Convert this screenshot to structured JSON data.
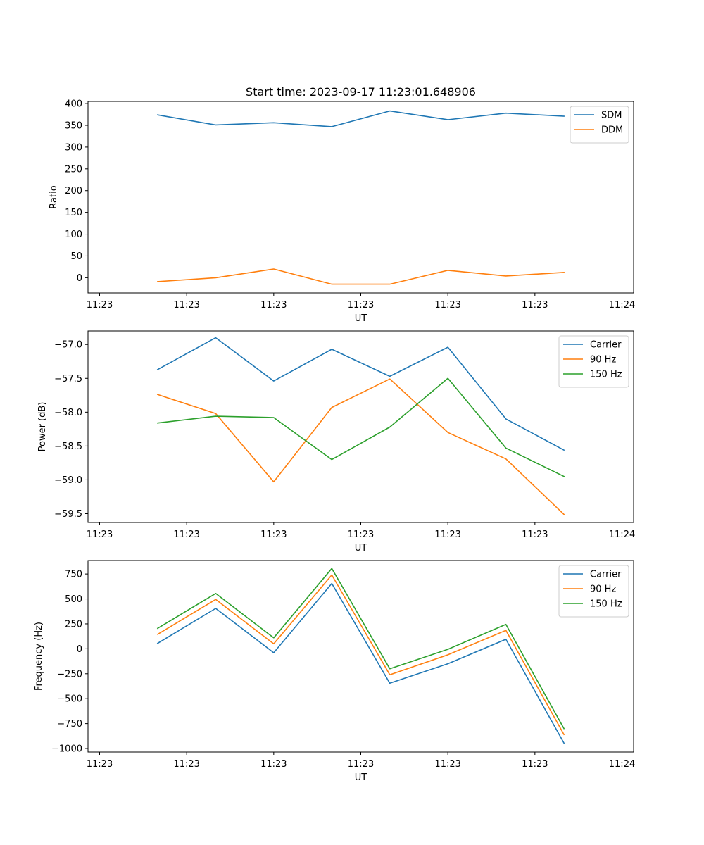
{
  "chart_data": [
    {
      "type": "line",
      "title": "Start time: 2023-09-17 11:23:01.648906",
      "xlabel": "UT",
      "ylabel": "Ratio",
      "x": [
        1,
        2,
        3,
        4,
        5,
        6,
        7,
        8
      ],
      "xlim": [
        -0.2,
        9.2
      ],
      "x_ticks": [
        0,
        1.5,
        3,
        4.5,
        6,
        7.5,
        9
      ],
      "x_tick_labels": [
        "11:23",
        "11:23",
        "11:23",
        "11:23",
        "11:23",
        "11:23",
        "11:24"
      ],
      "ylim": [
        -35,
        405
      ],
      "y_ticks": [
        0,
        50,
        100,
        150,
        200,
        250,
        300,
        350,
        400
      ],
      "y_tick_labels": [
        "0",
        "50",
        "100",
        "150",
        "200",
        "250",
        "300",
        "350",
        "400"
      ],
      "legend_position": "top-right",
      "series": [
        {
          "name": "SDM",
          "color": "#1f77b4",
          "values": [
            374,
            351,
            356,
            347,
            383,
            363,
            378,
            371
          ]
        },
        {
          "name": "DDM",
          "color": "#ff7f0e",
          "values": [
            -9,
            0,
            20,
            -15,
            -15,
            17,
            4,
            12
          ]
        }
      ]
    },
    {
      "type": "line",
      "title": "",
      "xlabel": "UT",
      "ylabel": "Power (dB)",
      "x": [
        1,
        2,
        3,
        4,
        5,
        6,
        7,
        8
      ],
      "xlim": [
        -0.2,
        9.2
      ],
      "x_ticks": [
        0,
        1.5,
        3,
        4.5,
        6,
        7.5,
        9
      ],
      "x_tick_labels": [
        "11:23",
        "11:23",
        "11:23",
        "11:23",
        "11:23",
        "11:23",
        "11:24"
      ],
      "ylim": [
        -59.63,
        -56.8
      ],
      "y_ticks": [
        -57.0,
        -57.5,
        -58.0,
        -58.5,
        -59.0,
        -59.5
      ],
      "y_tick_labels": [
        "−57.0",
        "−57.5",
        "−58.0",
        "−58.5",
        "−59.0",
        "−59.5"
      ],
      "legend_position": "top-right",
      "series": [
        {
          "name": "Carrier",
          "color": "#1f77b4",
          "values": [
            -57.37,
            -56.9,
            -57.54,
            -57.07,
            -57.47,
            -57.04,
            -58.1,
            -58.56
          ]
        },
        {
          "name": "90 Hz",
          "color": "#ff7f0e",
          "values": [
            -57.74,
            -58.02,
            -59.03,
            -57.93,
            -57.51,
            -58.3,
            -58.69,
            -59.51
          ]
        },
        {
          "name": "150 Hz",
          "color": "#2ca02c",
          "values": [
            -58.16,
            -58.06,
            -58.08,
            -58.7,
            -58.22,
            -57.5,
            -58.53,
            -58.95
          ]
        }
      ]
    },
    {
      "type": "line",
      "title": "",
      "xlabel": "UT",
      "ylabel": "Frequency (Hz)",
      "x": [
        1,
        2,
        3,
        4,
        5,
        6,
        7,
        8
      ],
      "xlim": [
        -0.2,
        9.2
      ],
      "x_ticks": [
        0,
        1.5,
        3,
        4.5,
        6,
        7.5,
        9
      ],
      "x_tick_labels": [
        "11:23",
        "11:23",
        "11:23",
        "11:23",
        "11:23",
        "11:23",
        "11:24"
      ],
      "ylim": [
        -1035,
        885
      ],
      "y_ticks": [
        750,
        500,
        250,
        0,
        -250,
        -500,
        -750,
        -1000
      ],
      "y_tick_labels": [
        "750",
        "500",
        "250",
        "0",
        "−250",
        "−500",
        "−750",
        "−1000"
      ],
      "legend_position": "top-right",
      "series": [
        {
          "name": "Carrier",
          "color": "#1f77b4",
          "values": [
            55,
            405,
            -40,
            655,
            -345,
            -150,
            95,
            -945
          ]
        },
        {
          "name": "90 Hz",
          "color": "#ff7f0e",
          "values": [
            145,
            495,
            50,
            740,
            -260,
            -60,
            185,
            -860
          ]
        },
        {
          "name": "150 Hz",
          "color": "#2ca02c",
          "values": [
            205,
            555,
            110,
            805,
            -200,
            -5,
            245,
            -800
          ]
        }
      ]
    }
  ]
}
